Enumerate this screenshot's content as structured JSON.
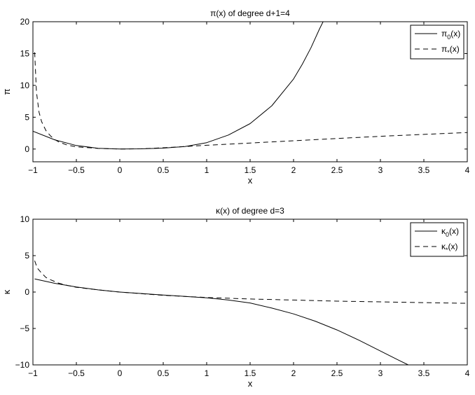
{
  "chart_data": [
    {
      "type": "line",
      "title": "π(x) of degree d+1=4",
      "xlabel": "x",
      "ylabel": "π",
      "xlim": [
        -1,
        4
      ],
      "ylim": [
        -2,
        20
      ],
      "xticks": [
        -1,
        -0.5,
        0,
        0.5,
        1,
        1.5,
        2,
        2.5,
        3,
        3.5,
        4
      ],
      "xtick_labels": [
        "−1",
        "−0.5",
        "0",
        "0.5",
        "1",
        "1.5",
        "2",
        "2.5",
        "3",
        "3.5",
        "4"
      ],
      "yticks": [
        0,
        5,
        10,
        15,
        20
      ],
      "ytick_labels": [
        "0",
        "5",
        "10",
        "15",
        "20"
      ],
      "grid": false,
      "legend": "top-right",
      "series": [
        {
          "name": "π0(x)",
          "legend_main": "π",
          "legend_sub": "0",
          "legend_rest": "(x)",
          "style": "solid",
          "x": [
            -1.0,
            -0.75,
            -0.5,
            -0.25,
            0,
            0.25,
            0.5,
            0.75,
            1.0,
            1.25,
            1.5,
            1.75,
            2.0,
            2.1,
            2.2,
            2.3,
            2.34
          ],
          "y": [
            2.8,
            1.45,
            0.55,
            0.12,
            0.0,
            0.03,
            0.15,
            0.4,
            1.0,
            2.2,
            4.0,
            6.8,
            11.0,
            13.3,
            15.9,
            18.9,
            20.0
          ]
        },
        {
          "name": "π*(x)",
          "legend_main": "π",
          "legend_sub": "*",
          "legend_rest": "(x)",
          "style": "dashed",
          "x": [
            -0.98,
            -0.96,
            -0.93,
            -0.9,
            -0.85,
            -0.8,
            -0.75,
            -0.7,
            -0.6,
            -0.5,
            -0.25,
            0,
            0.25,
            0.5,
            0.75,
            1.0,
            1.5,
            2.0,
            2.5,
            3.0,
            3.5,
            4.0
          ],
          "y": [
            15.2,
            9.0,
            5.8,
            4.3,
            2.9,
            2.1,
            1.5,
            1.1,
            0.6,
            0.35,
            0.1,
            0.0,
            0.05,
            0.2,
            0.4,
            0.6,
            0.95,
            1.3,
            1.65,
            2.0,
            2.3,
            2.6
          ]
        }
      ]
    },
    {
      "type": "line",
      "title": "κ(x) of degree d=3",
      "xlabel": "x",
      "ylabel": "κ",
      "xlim": [
        -1,
        4
      ],
      "ylim": [
        -10,
        10
      ],
      "xticks": [
        -1,
        -0.5,
        0,
        0.5,
        1,
        1.5,
        2,
        2.5,
        3,
        3.5,
        4
      ],
      "xtick_labels": [
        "−1",
        "−0.5",
        "0",
        "0.5",
        "1",
        "1.5",
        "2",
        "2.5",
        "3",
        "3.5",
        "4"
      ],
      "yticks": [
        -10,
        -5,
        0,
        5,
        10
      ],
      "ytick_labels": [
        "−10",
        "−5",
        "0",
        "5",
        "10"
      ],
      "grid": false,
      "legend": "top-right",
      "series": [
        {
          "name": "κ0(x)",
          "legend_main": "κ",
          "legend_sub": "0",
          "legend_rest": "(x)",
          "style": "solid",
          "x": [
            -0.98,
            -0.75,
            -0.5,
            -0.25,
            0,
            0.25,
            0.5,
            0.75,
            1.0,
            1.25,
            1.5,
            1.75,
            2.0,
            2.25,
            2.5,
            2.75,
            3.0,
            3.2,
            3.32
          ],
          "y": [
            1.8,
            1.2,
            0.7,
            0.3,
            0.0,
            -0.2,
            -0.4,
            -0.6,
            -0.8,
            -1.1,
            -1.5,
            -2.2,
            -3.0,
            -4.0,
            -5.2,
            -6.6,
            -8.1,
            -9.3,
            -10.0
          ]
        },
        {
          "name": "κ*(x)",
          "legend_main": "κ",
          "legend_sub": "*",
          "legend_rest": "(x)",
          "style": "dashed",
          "x": [
            -0.98,
            -0.95,
            -0.9,
            -0.85,
            -0.8,
            -0.7,
            -0.6,
            -0.5,
            -0.25,
            0,
            0.5,
            1.0,
            1.5,
            2.0,
            2.5,
            3.0,
            3.5,
            4.0
          ],
          "y": [
            4.3,
            3.3,
            2.6,
            2.0,
            1.7,
            1.2,
            0.9,
            0.65,
            0.3,
            0.0,
            -0.45,
            -0.75,
            -0.95,
            -1.1,
            -1.25,
            -1.35,
            -1.45,
            -1.55
          ]
        }
      ]
    }
  ]
}
